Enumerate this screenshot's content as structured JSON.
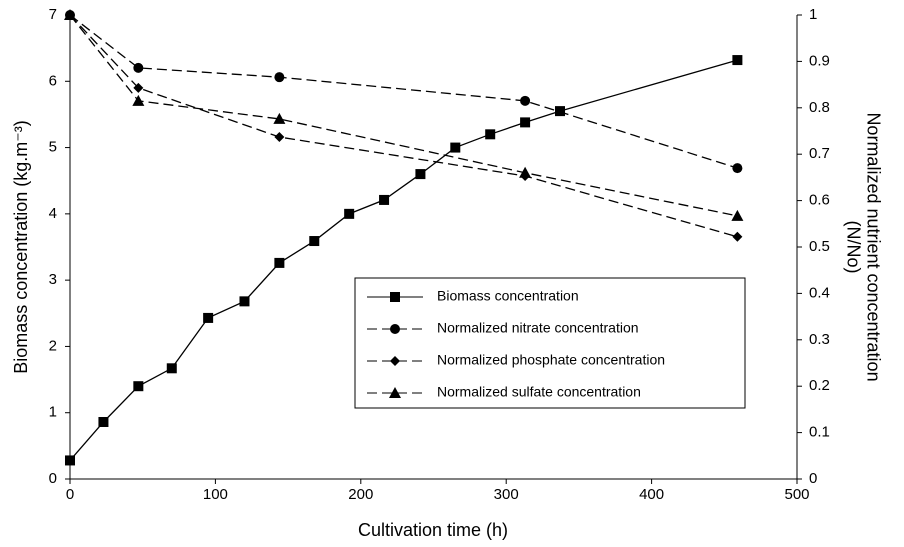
{
  "chart_data": {
    "type": "line",
    "xlabel": "Cultivation time (h)",
    "ylabel": "Biomass concentration (kg.m⁻³)",
    "y2label": [
      "Normalized nutrient concentration",
      "(N/No)"
    ],
    "xlim": [
      0,
      500
    ],
    "xticks": [
      0,
      100,
      200,
      300,
      400,
      500
    ],
    "ylim": [
      0,
      7
    ],
    "yticks": [
      0,
      1,
      2,
      3,
      4,
      5,
      6,
      7
    ],
    "y2lim": [
      0,
      1
    ],
    "y2ticks": [
      0,
      0.1,
      0.2,
      0.3,
      0.4,
      0.5,
      0.6,
      0.7,
      0.8,
      0.9,
      1
    ],
    "grid": false,
    "legend": "lower right",
    "series": [
      {
        "name": "Biomass concentration",
        "color": "#000000",
        "marker": "square",
        "dashed": false,
        "axis": "y",
        "x": [
          0,
          23,
          47,
          70,
          95,
          120,
          144,
          168,
          192,
          216,
          241,
          265,
          289,
          313,
          337,
          459
        ],
        "values": [
          0.28,
          0.86,
          1.4,
          1.67,
          2.43,
          2.68,
          3.26,
          3.59,
          4.0,
          4.21,
          4.6,
          5.0,
          5.2,
          5.38,
          5.55,
          6.32
        ]
      },
      {
        "name": "Normalized nitrate concentration",
        "color": "#000000",
        "marker": "circle",
        "dashed": true,
        "axis": "y2",
        "x": [
          0,
          47,
          144,
          313,
          459
        ],
        "values": [
          1,
          0.886,
          0.866,
          0.815,
          0.67
        ]
      },
      {
        "name": "Normalized phosphate concentration",
        "color": "#000000",
        "marker": "diamond",
        "dashed": true,
        "axis": "y2",
        "x": [
          0,
          47,
          144,
          313,
          459
        ],
        "values": [
          1,
          0.843,
          0.737,
          0.653,
          0.522
        ]
      },
      {
        "name": "Normalized sulfate concentration",
        "color": "#000000",
        "marker": "triangle",
        "dashed": true,
        "axis": "y2",
        "x": [
          0,
          47,
          144,
          313,
          459
        ],
        "values": [
          1,
          0.815,
          0.776,
          0.66,
          0.567
        ]
      }
    ]
  }
}
